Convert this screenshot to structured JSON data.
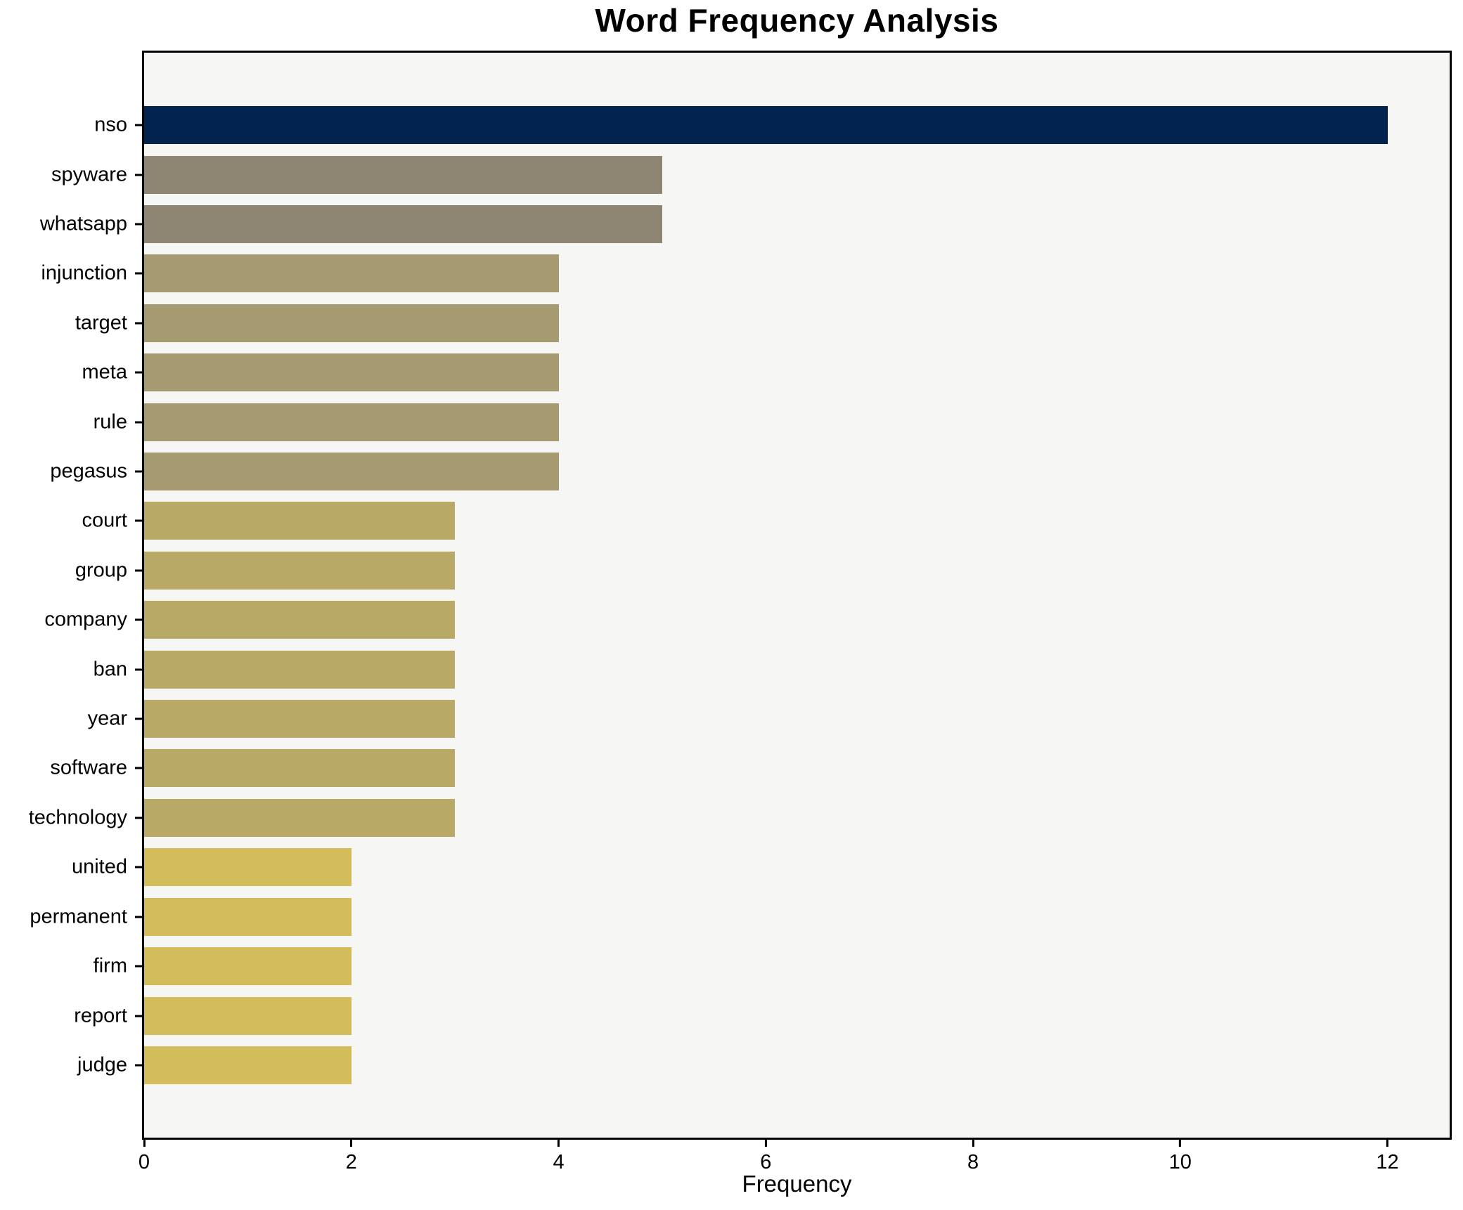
{
  "chart_data": {
    "type": "bar",
    "orientation": "horizontal",
    "title": "Word Frequency Analysis",
    "xlabel": "Frequency",
    "ylabel": "",
    "categories": [
      "nso",
      "spyware",
      "whatsapp",
      "injunction",
      "target",
      "meta",
      "rule",
      "pegasus",
      "court",
      "group",
      "company",
      "ban",
      "year",
      "software",
      "technology",
      "united",
      "permanent",
      "firm",
      "report",
      "judge"
    ],
    "values": [
      12,
      5,
      5,
      4,
      4,
      4,
      4,
      4,
      3,
      3,
      3,
      3,
      3,
      3,
      3,
      2,
      2,
      2,
      2,
      2
    ],
    "bar_colors": [
      "#02234d",
      "#8e8672",
      "#8e8672",
      "#a59a70",
      "#a59a70",
      "#a59a70",
      "#a59a70",
      "#a59a70",
      "#b9a966",
      "#b9a966",
      "#b9a966",
      "#b9a966",
      "#b9a966",
      "#b9a966",
      "#b9a966",
      "#d3bc5a",
      "#d3bc5a",
      "#d3bc5a",
      "#d3bc5a",
      "#d3bc5a"
    ],
    "xlim": [
      0,
      12.6
    ],
    "xticks": [
      0,
      2,
      4,
      6,
      8,
      10,
      12
    ],
    "grid": false,
    "legend": null,
    "plot_background": "#f6f6f4",
    "figure_background": "#ffffff",
    "spine_color": "#000000"
  }
}
